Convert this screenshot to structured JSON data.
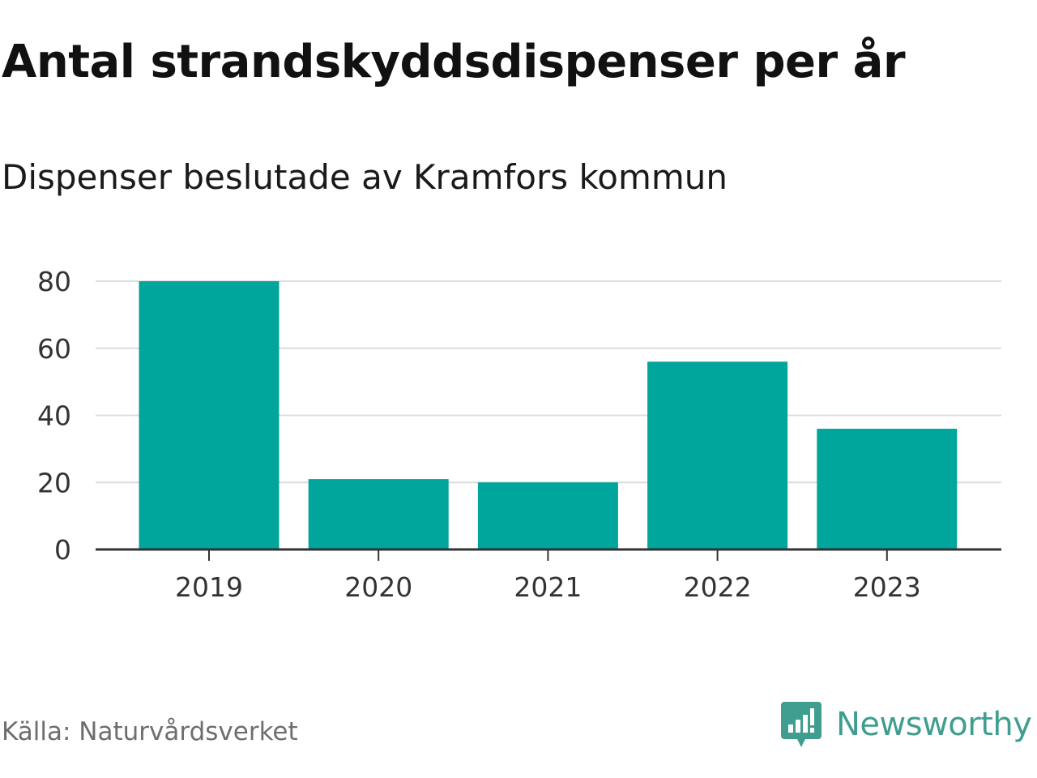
{
  "title": "Antal strandskyddsdispenser per år",
  "subtitle": "Dispenser beslutade av Kramfors kommun",
  "source": "Källa: Naturvårdsverket",
  "brand": "Newsworthy",
  "colors": {
    "bar": "#00a69c",
    "grid": "#dcdcdc",
    "axis": "#333333",
    "brand": "#3f9e8f"
  },
  "chart_data": {
    "type": "bar",
    "title": "Antal strandskyddsdispenser per år",
    "subtitle": "Dispenser beslutade av Kramfors kommun",
    "xlabel": "",
    "ylabel": "",
    "categories": [
      "2019",
      "2020",
      "2021",
      "2022",
      "2023"
    ],
    "values": [
      80,
      21,
      20,
      56,
      36
    ],
    "ylim": [
      0,
      80
    ],
    "yticks": [
      0,
      20,
      40,
      60,
      80
    ],
    "grid": true,
    "legend": "none"
  }
}
